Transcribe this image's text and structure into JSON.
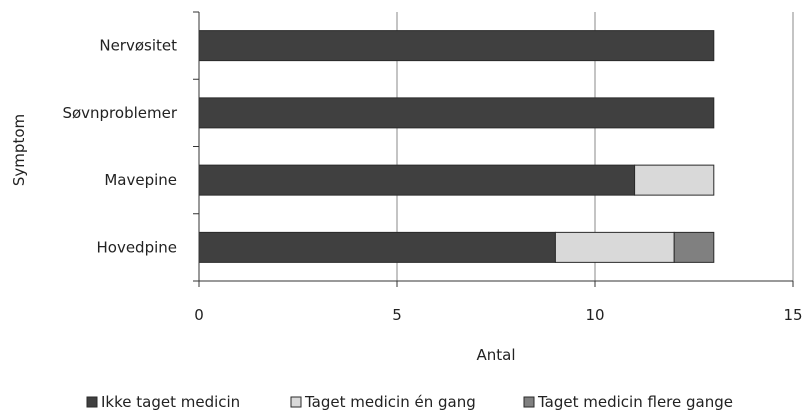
{
  "chart_data": {
    "type": "bar",
    "orientation": "horizontal",
    "stacked": true,
    "title": "",
    "xlabel": "Antal",
    "ylabel": "Symptom",
    "xlim": [
      0,
      15
    ],
    "xticks": [
      "0",
      "5",
      "10",
      "15"
    ],
    "grid": true,
    "legend_position": "bottom",
    "categories": [
      "Hovedpine",
      "Mavepine",
      "Søvnproblemer",
      "Nervøsitet"
    ],
    "series": [
      {
        "name": "Ikke taget medicin",
        "color": "#404040",
        "values": [
          9,
          11,
          13,
          13
        ]
      },
      {
        "name": "Taget medicin én gang",
        "color": "#d9d9d9",
        "values": [
          3,
          2,
          0,
          0
        ]
      },
      {
        "name": "Taget medicin flere gange",
        "color": "#808080",
        "values": [
          1,
          0,
          0,
          0
        ]
      }
    ]
  }
}
